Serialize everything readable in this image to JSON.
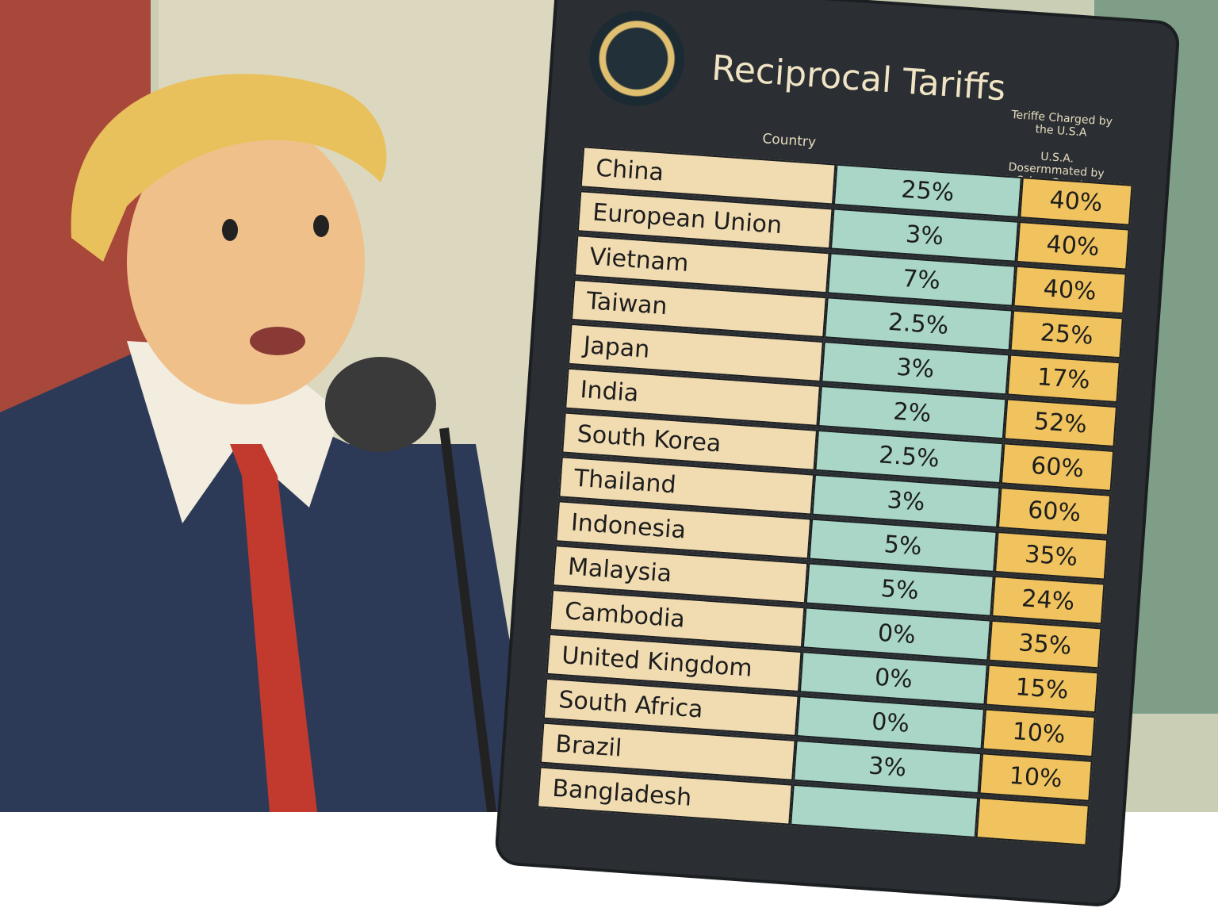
{
  "board": {
    "title": "Reciprocal Tariffs",
    "headers": {
      "country": "Country",
      "charged_by_usa": "Teriffe Charged by the U.S.A",
      "charged_to_usa": "U.S.A. Dosermmated by Orher Country"
    },
    "rows": [
      {
        "country": "China",
        "charged_by_usa": "25%",
        "charged_to_usa": "40%"
      },
      {
        "country": "European Union",
        "charged_by_usa": "3%",
        "charged_to_usa": "40%"
      },
      {
        "country": "Vietnam",
        "charged_by_usa": "7%",
        "charged_to_usa": "40%"
      },
      {
        "country": "Taiwan",
        "charged_by_usa": "2.5%",
        "charged_to_usa": "25%"
      },
      {
        "country": "Japan",
        "charged_by_usa": "3%",
        "charged_to_usa": "17%"
      },
      {
        "country": "India",
        "charged_by_usa": "2%",
        "charged_to_usa": "52%"
      },
      {
        "country": "South Korea",
        "charged_by_usa": "2.5%",
        "charged_to_usa": "60%"
      },
      {
        "country": "Thailand",
        "charged_by_usa": "3%",
        "charged_to_usa": "60%"
      },
      {
        "country": "Indonesia",
        "charged_by_usa": "5%",
        "charged_to_usa": "35%"
      },
      {
        "country": "Malaysia",
        "charged_by_usa": "5%",
        "charged_to_usa": "24%"
      },
      {
        "country": "Cambodia",
        "charged_by_usa": "0%",
        "charged_to_usa": "35%"
      },
      {
        "country": "United Kingdom",
        "charged_by_usa": "0%",
        "charged_to_usa": "15%"
      },
      {
        "country": "South Africa",
        "charged_by_usa": "0%",
        "charged_to_usa": "10%"
      },
      {
        "country": "Brazil",
        "charged_by_usa": "3%",
        "charged_to_usa": "10%"
      },
      {
        "country": "Bangladesh"
      }
    ]
  }
}
